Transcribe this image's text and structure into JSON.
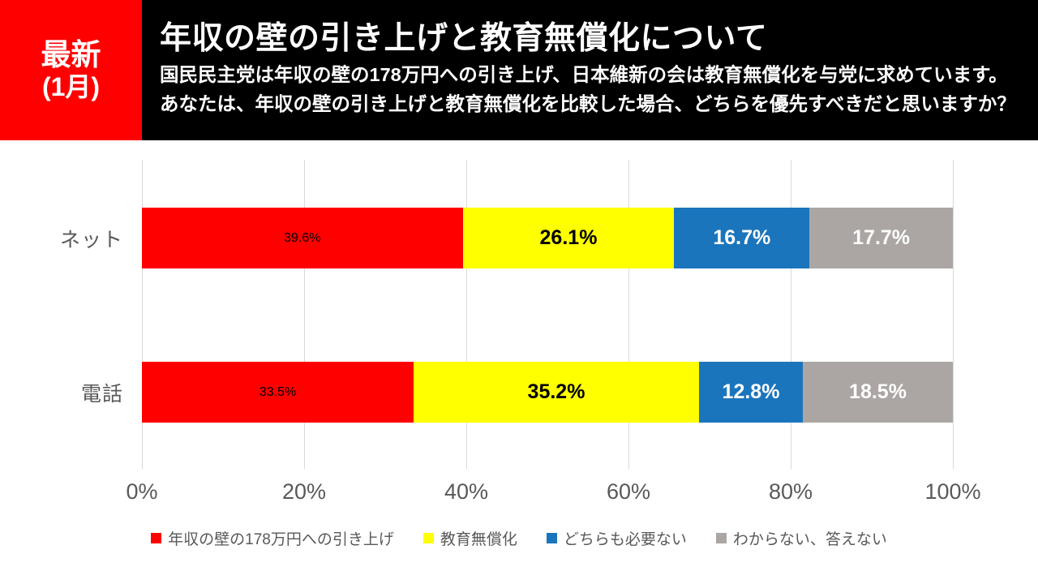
{
  "header": {
    "badge": {
      "line1": "最新",
      "line2": "(1月)",
      "bg_color": "#fe0000"
    },
    "title": "年収の壁の引き上げと教育無償化について",
    "subtitle_line1": "国民民主党は年収の壁の178万円への引き上げ、日本維新の会は教育無償化を与党に求めています。",
    "subtitle_line2": "あなたは、年収の壁の引き上げと教育無償化を比較した場合、どちらを優先すべきだと思いますか？"
  },
  "chart_data": {
    "type": "bar",
    "orientation": "horizontal",
    "stacked": true,
    "categories": [
      "ネット",
      "電話"
    ],
    "series": [
      {
        "name": "年収の壁の178万円への引き上げ",
        "color": "#fe0000",
        "values": [
          39.6,
          33.5
        ],
        "label_style": "small-black"
      },
      {
        "name": "教育無償化",
        "color": "#ffff00",
        "values": [
          26.1,
          35.2
        ],
        "label_style": "big-black"
      },
      {
        "name": "どちらも必要ない",
        "color": "#1b75bc",
        "values": [
          16.7,
          12.8
        ],
        "label_style": "big-white"
      },
      {
        "name": "わからない、答えない",
        "color": "#aba6a3",
        "values": [
          17.7,
          18.5
        ],
        "label_style": "big-white"
      }
    ],
    "value_suffix": "%",
    "x_ticks": [
      "0%",
      "20%",
      "40%",
      "60%",
      "80%",
      "100%"
    ],
    "xlim": [
      0,
      100
    ],
    "grid": true,
    "gridline_color": "#d9d9d9",
    "legend_position": "bottom",
    "text_color": "#595959"
  }
}
